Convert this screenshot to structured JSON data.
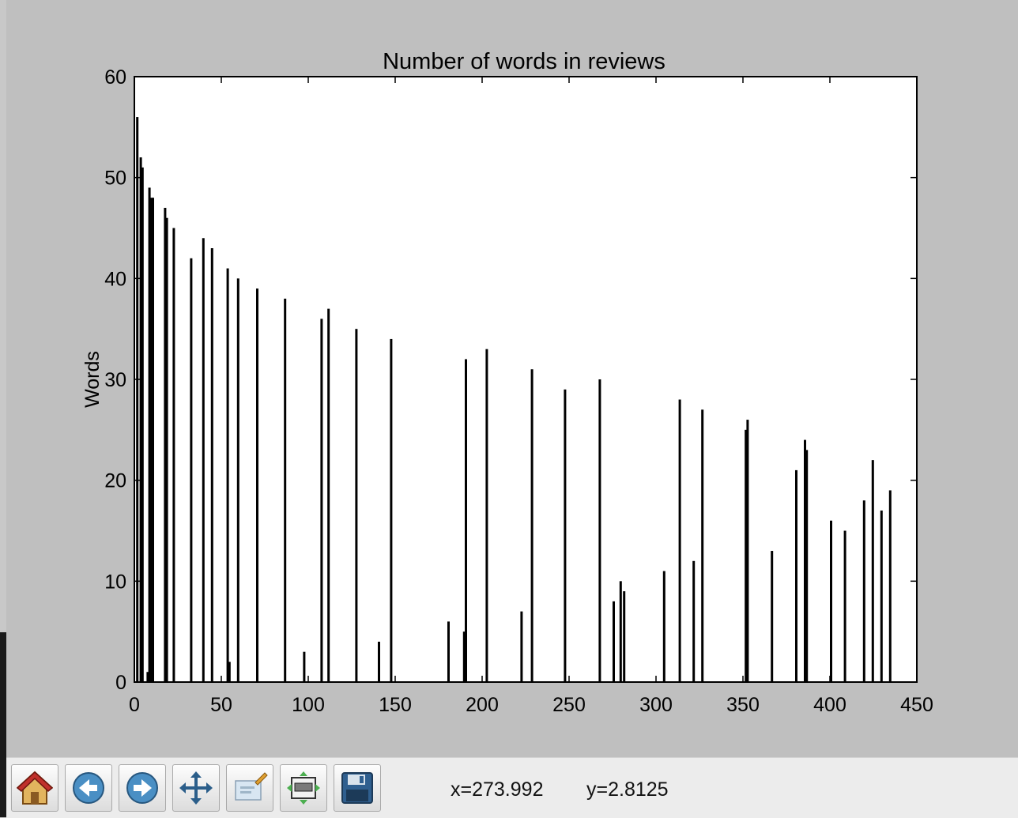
{
  "chart_data": {
    "type": "bar",
    "title": "Number of words in reviews",
    "xlabel": "",
    "ylabel": "Words",
    "xlim": [
      0,
      450
    ],
    "ylim": [
      0,
      60
    ],
    "xticks": [
      "0",
      "50",
      "100",
      "150",
      "200",
      "250",
      "300",
      "350",
      "400",
      "450"
    ],
    "yticks": [
      "0",
      "10",
      "20",
      "30",
      "40",
      "50",
      "60"
    ],
    "grid": false,
    "bar_color": "#000000",
    "x": [
      1,
      3,
      4,
      7,
      8,
      9,
      10,
      17,
      18,
      22,
      32,
      39,
      44,
      53,
      54,
      59,
      70,
      86,
      97,
      107,
      111,
      127,
      140,
      147,
      180,
      189,
      190,
      202,
      222,
      228,
      247,
      267,
      275,
      279,
      281,
      304,
      313,
      321,
      326,
      351,
      352,
      366,
      380,
      385,
      386,
      400,
      408,
      419,
      424,
      429,
      434
    ],
    "values": [
      56,
      52,
      51,
      1,
      49,
      48,
      48,
      47,
      46,
      45,
      42,
      44,
      43,
      41,
      2,
      40,
      39,
      38,
      3,
      36,
      37,
      35,
      4,
      34,
      6,
      5,
      32,
      33,
      7,
      31,
      29,
      30,
      8,
      10,
      9,
      11,
      28,
      12,
      27,
      25,
      26,
      13,
      21,
      24,
      23,
      16,
      15,
      18,
      22,
      17,
      19
    ]
  },
  "toolbar": {
    "buttons": [
      {
        "name": "home-button",
        "icon": "home-icon"
      },
      {
        "name": "back-button",
        "icon": "back-arrow-icon"
      },
      {
        "name": "forward-button",
        "icon": "forward-arrow-icon"
      },
      {
        "name": "pan-button",
        "icon": "move-icon"
      },
      {
        "name": "zoom-button",
        "icon": "zoom-rect-icon"
      },
      {
        "name": "subplots-button",
        "icon": "subplots-icon"
      },
      {
        "name": "save-button",
        "icon": "floppy-disk-icon"
      }
    ],
    "x_readout": "x=273.992",
    "y_readout": "y=2.8125"
  }
}
